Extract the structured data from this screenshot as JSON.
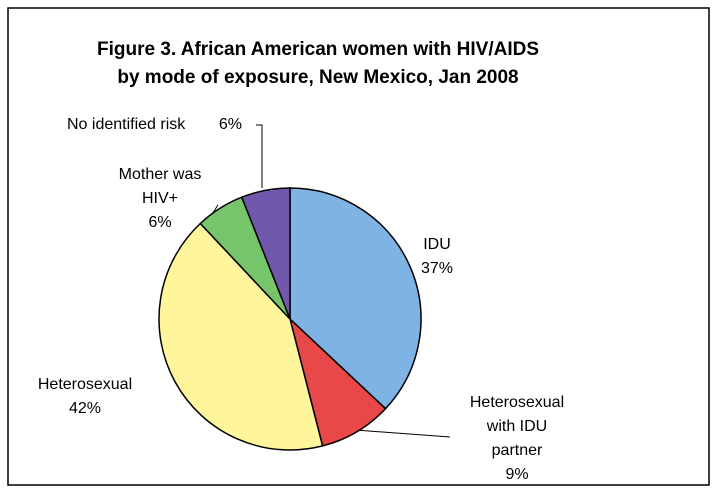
{
  "chart_data": {
    "type": "pie",
    "title": "Figure 3. African American women with HIV/AIDS by mode of exposure, New Mexico, Jan 2008",
    "categories": [
      "IDU",
      "Heterosexual with IDU partner",
      "Heterosexual",
      "Mother was HIV+",
      "No identified risk"
    ],
    "values": [
      37,
      9,
      42,
      6,
      6
    ],
    "value_labels": [
      "37%",
      "9%",
      "42%",
      "6%",
      "6%"
    ],
    "colors": [
      "#7fb3e3",
      "#e84848",
      "#fff59b",
      "#76c56a",
      "#7258ac"
    ]
  }
}
